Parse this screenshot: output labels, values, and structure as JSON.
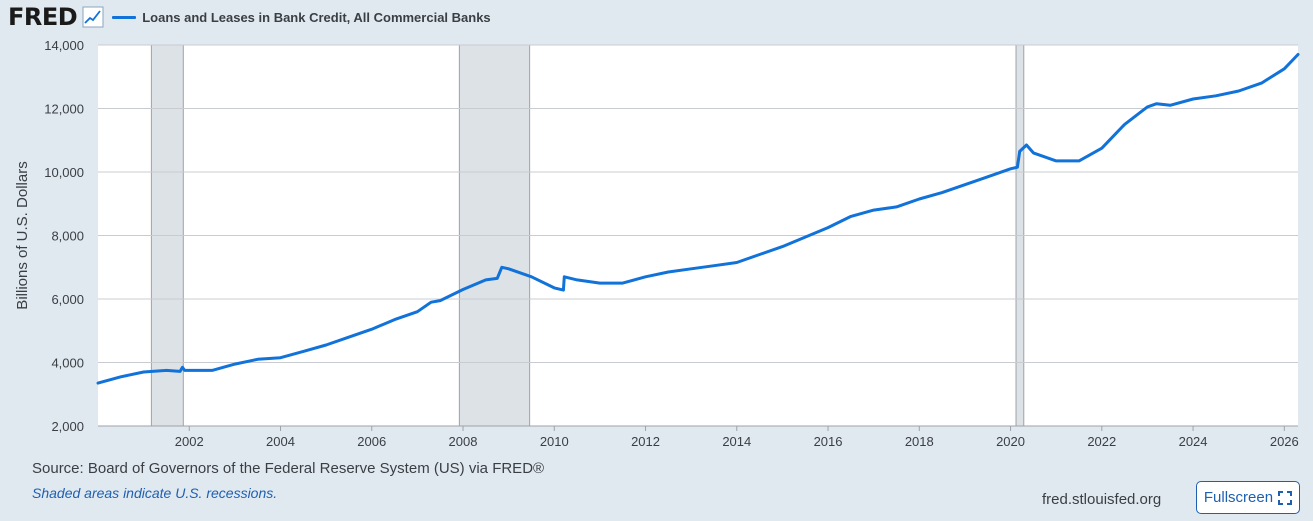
{
  "header": {
    "logo_text": "FRED",
    "series_label": "Loans and Leases in Bank Credit, All Commercial Banks"
  },
  "colors": {
    "series": "#1172d9",
    "recession": "#dde2e7",
    "background": "#e1e9f0"
  },
  "footer": {
    "source": "Source: Board of Governors of the Federal Reserve System (US) via FRED®",
    "note": "Shaded areas indicate U.S. recessions.",
    "site": "fred.stlouisfed.org",
    "fullscreen_label": "Fullscreen"
  },
  "chart_data": {
    "type": "line",
    "title": "",
    "ylabel": "Billions of U.S. Dollars",
    "xlabel": "",
    "ylim": [
      2000,
      14000
    ],
    "xlim": [
      2000.0,
      2026.3
    ],
    "yticks": [
      "2,000",
      "4,000",
      "6,000",
      "8,000",
      "10,000",
      "12,000",
      "14,000"
    ],
    "xticks": [
      "2002",
      "2004",
      "2006",
      "2008",
      "2010",
      "2012",
      "2014",
      "2016",
      "2018",
      "2020",
      "2022",
      "2024",
      "2026"
    ],
    "recessions": [
      [
        2001.17,
        2001.87
      ],
      [
        2007.92,
        2009.46
      ],
      [
        2020.12,
        2020.29
      ]
    ],
    "series": [
      {
        "name": "Loans and Leases in Bank Credit, All Commercial Banks",
        "x": [
          2000.0,
          2000.5,
          2001.0,
          2001.5,
          2001.8,
          2001.85,
          2001.9,
          2002.5,
          2003.0,
          2003.5,
          2004.0,
          2004.5,
          2005.0,
          2005.5,
          2006.0,
          2006.5,
          2007.0,
          2007.3,
          2007.5,
          2008.0,
          2008.5,
          2008.75,
          2008.85,
          2009.0,
          2009.5,
          2010.0,
          2010.2,
          2010.22,
          2010.5,
          2011.0,
          2011.5,
          2012.0,
          2012.5,
          2013.0,
          2013.5,
          2014.0,
          2014.5,
          2015.0,
          2015.5,
          2016.0,
          2016.5,
          2017.0,
          2017.5,
          2018.0,
          2018.5,
          2019.0,
          2019.5,
          2020.0,
          2020.15,
          2020.2,
          2020.35,
          2020.5,
          2021.0,
          2021.5,
          2022.0,
          2022.5,
          2023.0,
          2023.2,
          2023.5,
          2024.0,
          2024.5,
          2025.0,
          2025.5,
          2026.0,
          2026.3
        ],
        "values": [
          3350,
          3550,
          3700,
          3750,
          3720,
          3850,
          3750,
          3750,
          3950,
          4100,
          4150,
          4350,
          4550,
          4800,
          5050,
          5350,
          5600,
          5900,
          5950,
          6300,
          6600,
          6650,
          7000,
          6950,
          6700,
          6350,
          6280,
          6700,
          6600,
          6500,
          6500,
          6700,
          6850,
          6950,
          7050,
          7150,
          7400,
          7650,
          7950,
          8250,
          8600,
          8800,
          8900,
          9150,
          9350,
          9600,
          9850,
          10100,
          10150,
          10650,
          10850,
          10600,
          10350,
          10350,
          10750,
          11500,
          12050,
          12150,
          12100,
          12300,
          12400,
          12550,
          12800,
          13250,
          13700
        ]
      }
    ]
  }
}
